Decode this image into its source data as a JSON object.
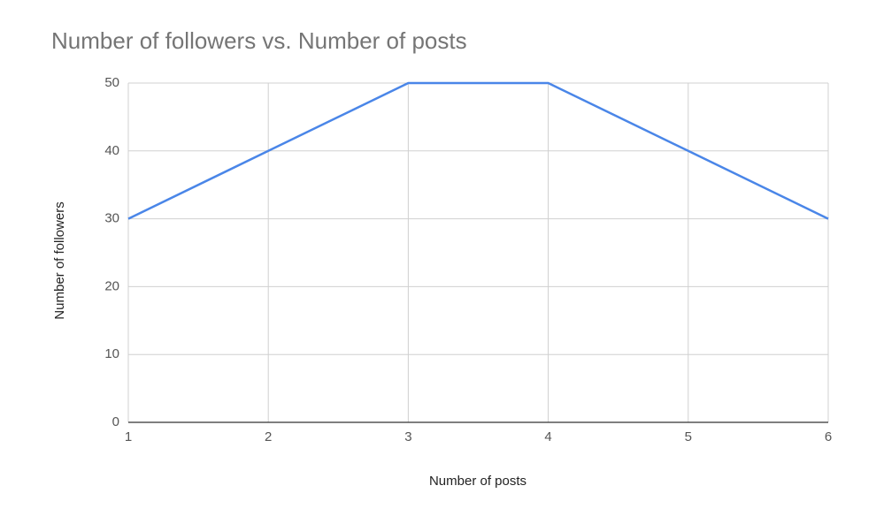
{
  "chart_data": {
    "type": "line",
    "title": "Number of followers vs. Number of posts",
    "x_label": "Number of posts",
    "y_label": "Number of followers",
    "x": [
      1,
      2,
      3,
      4,
      5,
      6
    ],
    "series": [
      {
        "name": "Number of followers",
        "color": "#4a86e8",
        "values": [
          30,
          40,
          50,
          50,
          40,
          30
        ]
      }
    ],
    "xlim": [
      1,
      6
    ],
    "xticks": [
      1,
      2,
      3,
      4,
      5,
      6
    ],
    "ylim": [
      0,
      50
    ],
    "yticks": [
      0,
      10,
      20,
      30,
      40,
      50
    ],
    "grid": true
  }
}
